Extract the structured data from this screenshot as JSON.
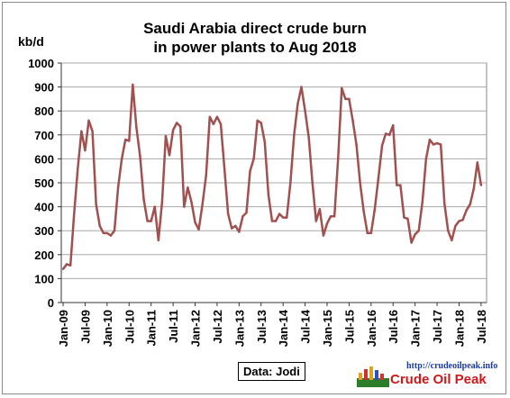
{
  "chart_data": {
    "type": "line",
    "title_line1": "Saudi Arabia direct crude burn",
    "title_line2": "in power plants to Aug 2018",
    "ylabel": "kb/d",
    "ylim": [
      0,
      1000
    ],
    "yticks": [
      0,
      100,
      200,
      300,
      400,
      500,
      600,
      700,
      800,
      900,
      1000
    ],
    "x_tick_labels": [
      "Jan-09",
      "Jul-09",
      "Jan-10",
      "Jul-10",
      "Jan-11",
      "Jul-11",
      "Jan-12",
      "Jul-12",
      "Jan-13",
      "Jul-13",
      "Jan-14",
      "Jul-14",
      "Jan-15",
      "Jul-15",
      "Jan-16",
      "Jul-16",
      "Jan-17",
      "Jul-17",
      "Jan-18",
      "Jul-18"
    ],
    "series": [
      {
        "color": "#A0504E",
        "x_start": "Jan-09",
        "x_end": "Aug-18",
        "values": [
          140,
          160,
          155,
          370,
          560,
          715,
          635,
          760,
          715,
          410,
          320,
          290,
          290,
          280,
          300,
          480,
          600,
          680,
          675,
          910,
          730,
          610,
          430,
          340,
          340,
          400,
          260,
          420,
          695,
          615,
          720,
          750,
          735,
          400,
          480,
          420,
          335,
          305,
          410,
          530,
          775,
          745,
          775,
          745,
          560,
          370,
          310,
          320,
          295,
          360,
          375,
          550,
          600,
          760,
          750,
          670,
          450,
          340,
          340,
          370,
          355,
          355,
          500,
          700,
          830,
          900,
          800,
          690,
          500,
          340,
          390,
          280,
          330,
          360,
          360,
          600,
          895,
          850,
          850,
          760,
          660,
          500,
          380,
          290,
          290,
          390,
          520,
          655,
          705,
          700,
          740,
          490,
          490,
          355,
          350,
          250,
          285,
          300,
          420,
          600,
          680,
          660,
          665,
          660,
          415,
          300,
          260,
          320,
          340,
          345,
          385,
          410,
          475,
          585,
          490
        ]
      }
    ],
    "grid": true,
    "legend": "none"
  },
  "annotations": {
    "source": "Data: Jodi",
    "logo_url": "http://crudeoilpeak.info",
    "logo_name": "Crude Oil Peak"
  },
  "colors": {
    "series": "#A0504E",
    "logo_name": "#d01818",
    "logo_url": "#1a3c9c"
  }
}
